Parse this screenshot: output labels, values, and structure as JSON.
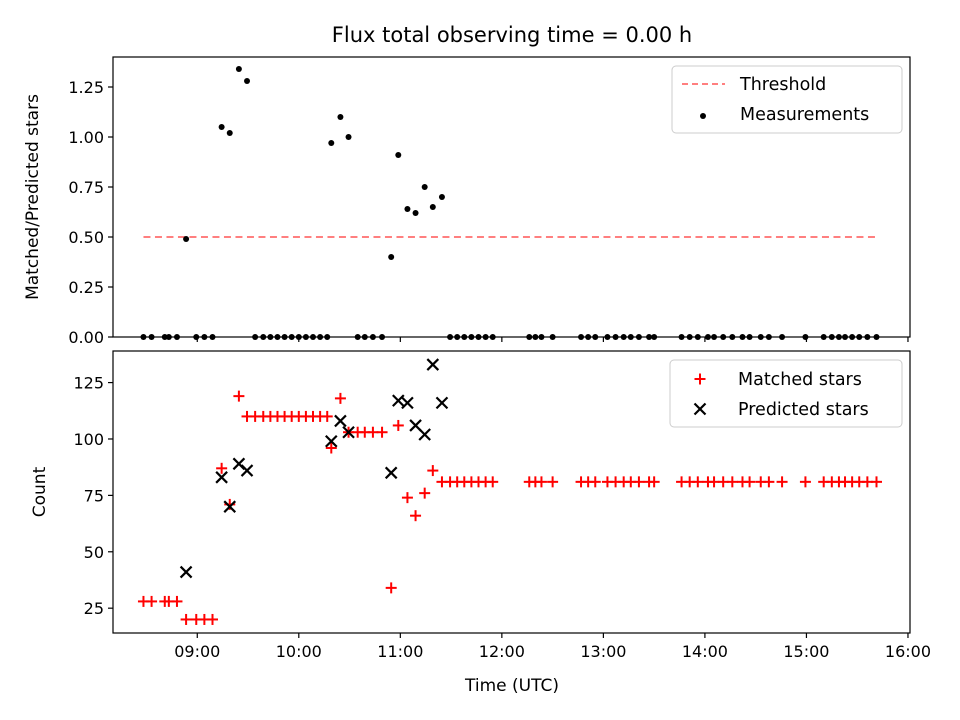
{
  "chart_data": [
    {
      "type": "scatter",
      "title": "Flux total observing time = 0.00 h",
      "xlabel": "",
      "ylabel": "Matched/Predicted stars",
      "xlim": [
        8.17,
        16.02
      ],
      "ylim": [
        0,
        1.4
      ],
      "x_ticks": [
        "09:00",
        "10:00",
        "11:00",
        "12:00",
        "13:00",
        "14:00",
        "15:00",
        "16:00"
      ],
      "x_tick_values": [
        9,
        10,
        11,
        12,
        13,
        14,
        15,
        16
      ],
      "x_tick_labels_visible": false,
      "y_ticks": [
        "0.00",
        "0.25",
        "0.50",
        "0.75",
        "1.00",
        "1.25"
      ],
      "y_tick_values": [
        0,
        0.25,
        0.5,
        0.75,
        1.0,
        1.25
      ],
      "legend_position": "top-right",
      "series": [
        {
          "name": "Threshold",
          "style": "dashed-line",
          "color": "#ff7f7f",
          "x": [
            8.47,
            15.69
          ],
          "y": [
            0.5,
            0.5
          ]
        },
        {
          "name": "Measurements",
          "style": "dot",
          "color": "#000000",
          "x": [
            8.47,
            8.55,
            8.68,
            8.72,
            8.8,
            8.89,
            8.99,
            9.07,
            9.15,
            9.24,
            9.32,
            9.41,
            9.49,
            9.57,
            9.65,
            9.72,
            9.79,
            9.86,
            9.93,
            10.0,
            10.07,
            10.14,
            10.21,
            10.28,
            10.32,
            10.41,
            10.49,
            10.58,
            10.65,
            10.73,
            10.82,
            10.91,
            10.98,
            11.07,
            11.15,
            11.24,
            11.32,
            11.41,
            11.49,
            11.56,
            11.63,
            11.7,
            11.77,
            11.84,
            11.91,
            12.27,
            12.33,
            12.39,
            12.5,
            12.78,
            12.85,
            12.92,
            13.04,
            13.12,
            13.2,
            13.27,
            13.35,
            13.45,
            13.5,
            13.77,
            13.85,
            13.93,
            14.03,
            14.09,
            14.18,
            14.27,
            14.37,
            14.44,
            14.55,
            14.63,
            14.76,
            14.99,
            15.17,
            15.25,
            15.32,
            15.38,
            15.45,
            15.52,
            15.6,
            15.69
          ],
          "y": [
            0,
            0,
            0,
            0,
            0,
            0.49,
            0,
            0,
            0,
            1.05,
            1.02,
            1.34,
            1.28,
            0,
            0,
            0,
            0,
            0,
            0,
            0,
            0,
            0,
            0,
            0,
            0.97,
            1.1,
            1.0,
            0,
            0,
            0,
            0,
            0.4,
            0.91,
            0.64,
            0.62,
            0.75,
            0.65,
            0.7,
            0,
            0,
            0,
            0,
            0,
            0,
            0,
            0,
            0,
            0,
            0,
            0,
            0,
            0,
            0,
            0,
            0,
            0,
            0,
            0,
            0,
            0,
            0,
            0,
            0,
            0,
            0,
            0,
            0,
            0,
            0,
            0,
            0,
            0,
            0,
            0,
            0,
            0,
            0,
            0,
            0,
            0
          ]
        }
      ]
    },
    {
      "type": "scatter",
      "title": "",
      "xlabel": "Time (UTC)",
      "ylabel": "Count",
      "xlim": [
        8.17,
        16.02
      ],
      "ylim": [
        14,
        139
      ],
      "x_ticks": [
        "09:00",
        "10:00",
        "11:00",
        "12:00",
        "13:00",
        "14:00",
        "15:00",
        "16:00"
      ],
      "x_tick_values": [
        9,
        10,
        11,
        12,
        13,
        14,
        15,
        16
      ],
      "y_ticks": [
        "25",
        "50",
        "75",
        "100",
        "125"
      ],
      "y_tick_values": [
        25,
        50,
        75,
        100,
        125
      ],
      "legend_position": "top-right",
      "series": [
        {
          "name": "Matched stars",
          "style": "plus",
          "color": "#ff0000",
          "x": [
            8.47,
            8.55,
            8.68,
            8.72,
            8.8,
            8.89,
            8.99,
            9.07,
            9.15,
            9.24,
            9.32,
            9.41,
            9.49,
            9.57,
            9.65,
            9.72,
            9.79,
            9.86,
            9.93,
            10.0,
            10.07,
            10.14,
            10.21,
            10.28,
            10.32,
            10.41,
            10.49,
            10.58,
            10.65,
            10.73,
            10.82,
            10.91,
            10.98,
            11.07,
            11.15,
            11.24,
            11.32,
            11.41,
            11.49,
            11.56,
            11.63,
            11.7,
            11.77,
            11.84,
            11.91,
            12.27,
            12.33,
            12.39,
            12.5,
            12.78,
            12.85,
            12.92,
            13.04,
            13.12,
            13.2,
            13.27,
            13.35,
            13.45,
            13.5,
            13.77,
            13.85,
            13.93,
            14.03,
            14.09,
            14.18,
            14.27,
            14.37,
            14.44,
            14.55,
            14.63,
            14.76,
            14.99,
            15.17,
            15.25,
            15.32,
            15.38,
            15.45,
            15.52,
            15.6,
            15.69
          ],
          "y": [
            28,
            28,
            28,
            28,
            28,
            20,
            20,
            20,
            20,
            87,
            71,
            119,
            110,
            110,
            110,
            110,
            110,
            110,
            110,
            110,
            110,
            110,
            110,
            110,
            96,
            118,
            103,
            103,
            103,
            103,
            103,
            34,
            106,
            74,
            66,
            76,
            86,
            81,
            81,
            81,
            81,
            81,
            81,
            81,
            81,
            81,
            81,
            81,
            81,
            81,
            81,
            81,
            81,
            81,
            81,
            81,
            81,
            81,
            81,
            81,
            81,
            81,
            81,
            81,
            81,
            81,
            81,
            81,
            81,
            81,
            81,
            81,
            81,
            81,
            81,
            81,
            81,
            81,
            81,
            81
          ]
        },
        {
          "name": "Predicted stars",
          "style": "cross",
          "color": "#000000",
          "x": [
            8.89,
            9.24,
            9.32,
            9.41,
            9.49,
            10.32,
            10.41,
            10.49,
            10.91,
            10.98,
            11.07,
            11.15,
            11.24,
            11.32,
            11.41
          ],
          "y": [
            41,
            83,
            70,
            89,
            86,
            99,
            108,
            103,
            85,
            117,
            116,
            106,
            102,
            133,
            116
          ]
        }
      ]
    }
  ]
}
